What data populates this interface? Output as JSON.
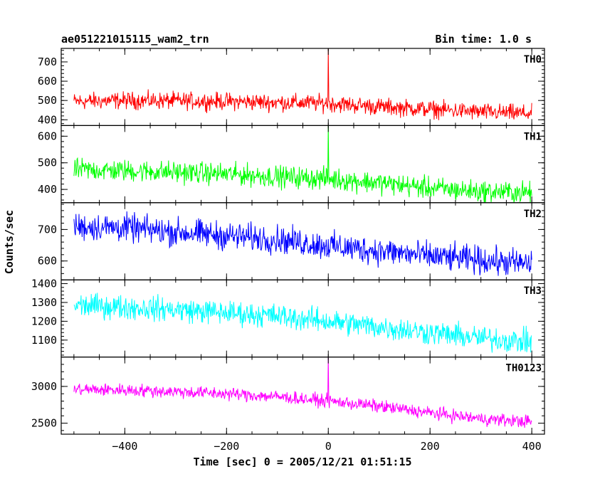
{
  "chart_data": {
    "type": "line",
    "title": "ae051221015115_wam2_trn",
    "subtitle": "Bin time: 1.0 s",
    "xlabel": "Time [sec] 0 = 2005/12/21 01:51:15",
    "ylabel": "Counts/sec",
    "xlim": [
      -525,
      425
    ],
    "xticks": [
      -400,
      -200,
      0,
      200,
      400
    ],
    "xtick_labels": [
      "−400",
      "−200",
      "0",
      "200",
      "400"
    ],
    "grid": false,
    "panels": [
      {
        "name": "TH0",
        "color": "#ff0000",
        "ylim": [
          370,
          770
        ],
        "yticks": [
          400,
          500,
          600,
          700
        ],
        "ytick_labels": [
          "400",
          "500",
          "600",
          "700"
        ],
        "x": [
          -500,
          -400,
          -300,
          -200,
          -100,
          0,
          100,
          200,
          300,
          400
        ],
        "y": [
          495,
          500,
          498,
          495,
          490,
          485,
          468,
          455,
          440,
          432
        ],
        "spread": 38,
        "spike": {
          "x": 0,
          "y": 770
        }
      },
      {
        "name": "TH1",
        "color": "#00ff00",
        "ylim": [
          350,
          640
        ],
        "yticks": [
          400,
          500,
          600
        ],
        "ytick_labels": [
          "400",
          "500",
          "600"
        ],
        "x": [
          -500,
          -400,
          -300,
          -200,
          -100,
          0,
          100,
          200,
          300,
          400
        ],
        "y": [
          475,
          470,
          465,
          458,
          448,
          440,
          425,
          405,
          392,
          388
        ],
        "spread": 35,
        "spike": {
          "x": 0,
          "y": 645
        }
      },
      {
        "name": "TH2",
        "color": "#0000ff",
        "ylim": [
          540,
          785
        ],
        "yticks": [
          600,
          700
        ],
        "ytick_labels": [
          "600",
          "700"
        ],
        "x": [
          -500,
          -400,
          -300,
          -200,
          -100,
          0,
          100,
          200,
          300,
          400
        ],
        "y": [
          710,
          705,
          692,
          680,
          668,
          648,
          632,
          615,
          602,
          590
        ],
        "spread": 38
      },
      {
        "name": "TH3",
        "color": "#00ffff",
        "ylim": [
          1010,
          1420
        ],
        "yticks": [
          1100,
          1200,
          1300,
          1400
        ],
        "ytick_labels": [
          "1100",
          "1200",
          "1300",
          "1400"
        ],
        "x": [
          -500,
          -400,
          -300,
          -200,
          -100,
          0,
          100,
          200,
          300,
          400
        ],
        "y": [
          1285,
          1275,
          1262,
          1245,
          1228,
          1200,
          1170,
          1140,
          1110,
          1090
        ],
        "spread": 55
      },
      {
        "name": "TH0123",
        "color": "#ff00ff",
        "ylim": [
          2350,
          3400
        ],
        "yticks": [
          2500,
          3000
        ],
        "ytick_labels": [
          "2500",
          "3000"
        ],
        "x": [
          -500,
          -400,
          -300,
          -200,
          -100,
          0,
          100,
          200,
          300,
          400
        ],
        "y": [
          2960,
          2950,
          2930,
          2900,
          2860,
          2800,
          2730,
          2640,
          2560,
          2520
        ],
        "spread": 75,
        "spike": {
          "x": 0,
          "y": 3420
        }
      }
    ]
  }
}
